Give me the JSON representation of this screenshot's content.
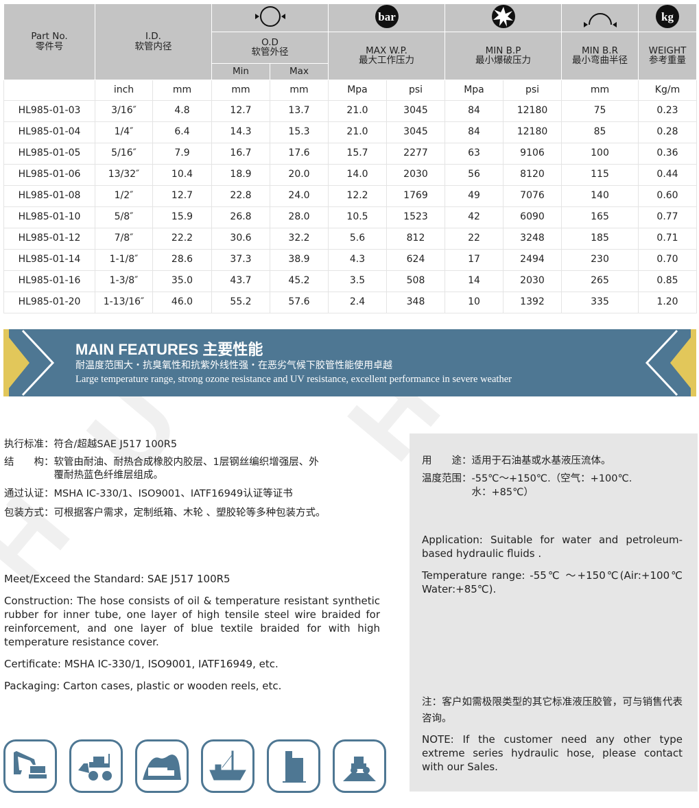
{
  "table": {
    "headers": {
      "part": "Part No.",
      "part_cn": "零件号",
      "id": "I.D.",
      "id_cn": "软管内径",
      "od": "O.D",
      "od_cn": "软管外径",
      "od_min": "Min",
      "od_max": "Max",
      "wp": "MAX W.P.",
      "wp_cn": "最大工作压力",
      "bp": "MIN B.P",
      "bp_cn": "最小爆破压力",
      "br": "MIN B.R",
      "br_cn": "最小弯曲半径",
      "wt": "WEIGHT",
      "wt_cn": "参考重量",
      "bar_icon": "bar",
      "kg_icon": "kg"
    },
    "units": [
      "",
      "inch",
      "mm",
      "mm",
      "mm",
      "Mpa",
      "psi",
      "Mpa",
      "psi",
      "mm",
      "Kg/m"
    ],
    "rows": [
      [
        "HL985-01-03",
        "3/16″",
        "4.8",
        "12.7",
        "13.7",
        "21.0",
        "3045",
        "84",
        "12180",
        "75",
        "0.23"
      ],
      [
        "HL985-01-04",
        "1/4″",
        "6.4",
        "14.3",
        "15.3",
        "21.0",
        "3045",
        "84",
        "12180",
        "85",
        "0.28"
      ],
      [
        "HL985-01-05",
        "5/16″",
        "7.9",
        "16.7",
        "17.6",
        "15.7",
        "2277",
        "63",
        "9106",
        "100",
        "0.36"
      ],
      [
        "HL985-01-06",
        "13/32″",
        "10.4",
        "18.9",
        "20.0",
        "14.0",
        "2030",
        "56",
        "8120",
        "115",
        "0.44"
      ],
      [
        "HL985-01-08",
        "1/2″",
        "12.7",
        "22.8",
        "24.0",
        "12.2",
        "1769",
        "49",
        "7076",
        "140",
        "0.60"
      ],
      [
        "HL985-01-10",
        "5/8″",
        "15.9",
        "26.8",
        "28.0",
        "10.5",
        "1523",
        "42",
        "6090",
        "165",
        "0.77"
      ],
      [
        "HL985-01-12",
        "7/8″",
        "22.2",
        "30.6",
        "32.2",
        "5.6",
        "812",
        "22",
        "3248",
        "185",
        "0.71"
      ],
      [
        "HL985-01-14",
        "1-1/8″",
        "28.6",
        "37.3",
        "38.9",
        "4.3",
        "624",
        "17",
        "2494",
        "230",
        "0.70"
      ],
      [
        "HL985-01-16",
        "1-3/8″",
        "35.0",
        "43.7",
        "45.2",
        "3.5",
        "508",
        "14",
        "2030",
        "265",
        "0.85"
      ],
      [
        "HL985-01-20",
        "1-13/16″",
        "46.0",
        "55.2",
        "57.6",
        "2.4",
        "348",
        "10",
        "1392",
        "335",
        "1.20"
      ]
    ]
  },
  "banner": {
    "title": "MAIN FEATURES 主要性能",
    "cn": "耐温度范围大・抗臭氧性和抗紫外线性强・在恶劣气候下胶管性能使用卓越",
    "en": "Large temperature range, strong ozone resistance and UV resistance, excellent performance in severe weather"
  },
  "left_cn": [
    "执行标准：符合/超越SAE J517 100R5",
    "结　　构：软管由耐油、耐热合成橡胶内胶层、1层钢丝编织增强层、外",
    "　　　　　覆耐热蓝色纤维层组成。",
    "通过认证：MSHA IC-330/1、ISO9001、IATF16949认证等证书",
    "包装方式：可根据客户需求，定制纸箱、木轮 、塑胶轮等多种包装方式。"
  ],
  "left_en": {
    "standard": "Meet/Exceed the Standard: SAE J517 100R5",
    "construction": "Construction: The hose consists of oil & temperature resistant synthetic rubber for inner tube, one layer of high tensile steel wire braided for reinforcement, and one layer of blue textile braided for with high temperature resistance cover.",
    "certificate": "Certificate: MSHA IC-330/1, ISO9001, IATF16949, etc.",
    "packaging": "Packaging: Carton cases, plastic or wooden reels, etc."
  },
  "right": {
    "use_cn": "用　　途：适用于石油基或水基液压流体。",
    "temp_cn": "温度范围：-55℃～+150℃.（空气：+100℃.",
    "temp_cn2": "　　　　　水：+85℃）",
    "app_en": "Application: Suitable for water and petroleum-based hydraulic fluids .",
    "temp_en": "Temperature range: -55℃ ～+150℃(Air:+100℃ Water:+85℃).",
    "note_cn": "注：客户如需极限类型的其它标准液压胶管，可与销售代表咨询。",
    "note_en": "NOTE: If the customer need any other type extreme series hydraulic hose, please contact with our Sales."
  },
  "watermark": "HUYLONE",
  "colors": {
    "header_gray": "#c4c4c4",
    "banner_blue": "#4e7793",
    "accent_yellow": "#e2c75a",
    "panel_gray": "#e6e6e6"
  },
  "applications": [
    "excavator-icon",
    "loader-icon",
    "mining-truck-icon",
    "ship-icon",
    "building-icon",
    "agriculture-tractor-icon"
  ]
}
